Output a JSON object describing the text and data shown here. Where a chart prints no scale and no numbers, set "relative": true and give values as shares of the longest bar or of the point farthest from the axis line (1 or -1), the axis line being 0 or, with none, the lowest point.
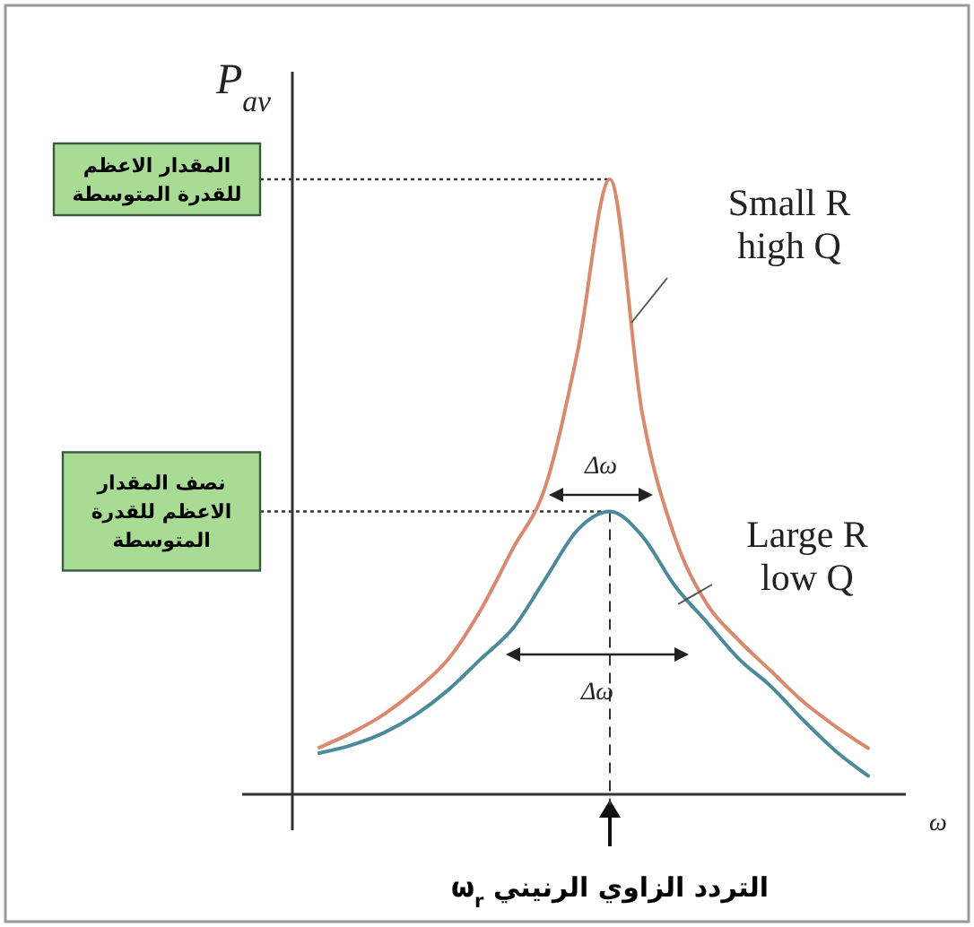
{
  "chart_data": {
    "type": "line",
    "relative": true,
    "ylabel": "P$_{av}$",
    "xlabel": "ω",
    "categories": [
      null,
      null,
      null,
      null,
      null,
      null,
      null,
      null,
      null,
      null,
      null,
      null,
      null,
      null,
      null,
      null,
      null,
      null
    ],
    "series": [
      {
        "name": "Small R high Q",
        "color": "#d98a6e",
        "values": [
          0.076,
          0.1,
          0.13,
          0.17,
          0.22,
          0.3,
          0.4,
          0.5,
          0.72,
          1.0,
          0.62,
          0.42,
          0.31,
          0.25,
          0.2,
          0.15,
          0.11,
          0.075
        ]
      },
      {
        "name": "Large R low Q",
        "color": "#4a8a9a",
        "values": [
          0.067,
          0.08,
          0.1,
          0.13,
          0.17,
          0.22,
          0.27,
          0.35,
          0.43,
          0.46,
          0.42,
          0.34,
          0.28,
          0.22,
          0.175,
          0.12,
          0.07,
          0.03
        ]
      }
    ],
    "ref_lines": [
      {
        "axis": "y",
        "value": 1,
        "label": "المقدار الاعظم للقدرة المتوسطة",
        "line_style": "dotted"
      },
      {
        "axis": "y",
        "value": 0.46,
        "label": "نصف المقدار الاعظم للقدرة المتوسطة",
        "line_style": "dotted"
      },
      {
        "axis": "x",
        "value": "التردد الزاوي الرنيني ω$_{r}$",
        "line_style": "dashed"
      }
    ],
    "annotations": [
      "Δω",
      "Δω"
    ]
  }
}
